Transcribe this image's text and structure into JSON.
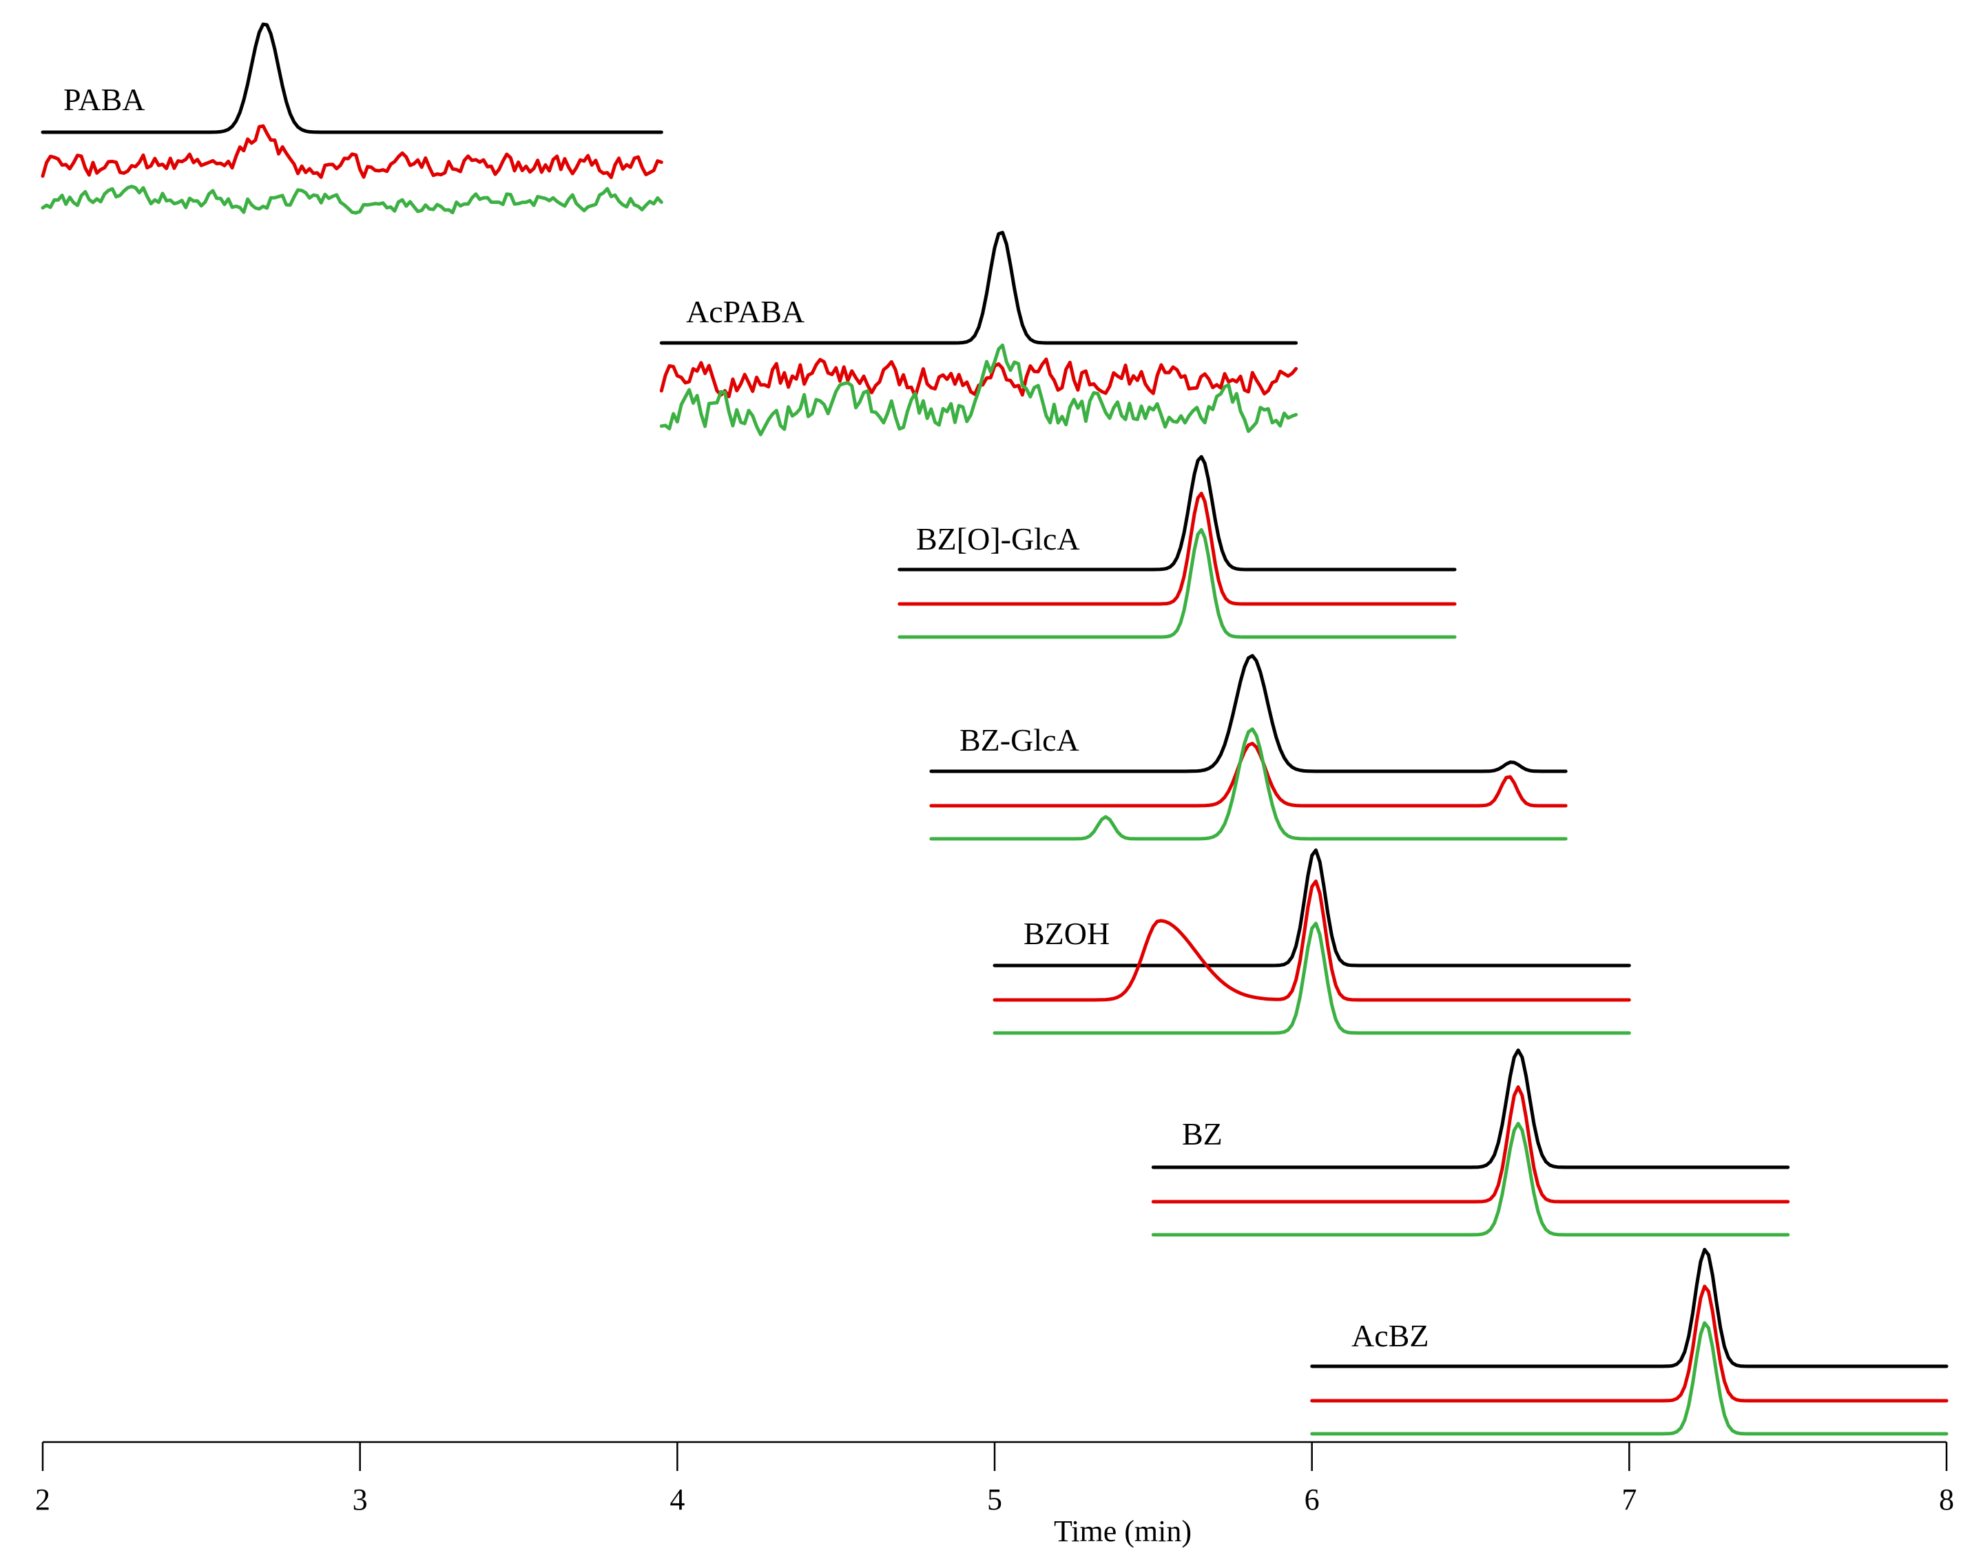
{
  "chart_data": {
    "type": "line",
    "title": "",
    "xlabel": "Time (min)",
    "ylabel": "",
    "xlim": [
      2,
      8
    ],
    "xticks": [
      2,
      3,
      4,
      5,
      6,
      7,
      8
    ],
    "xtick_labels": [
      "2",
      "3",
      "4",
      "5",
      "6",
      "7",
      "8"
    ],
    "series_colors": {
      "black": "#000000",
      "red": "#e00000",
      "green": "#3cb043"
    },
    "panels": [
      {
        "label": "PABA",
        "x_range": [
          2.0,
          3.95
        ],
        "peak_time": 2.7,
        "traces": [
          {
            "color": "black",
            "peak": 1.0,
            "width": 0.06,
            "noise": 0.0
          },
          {
            "color": "red",
            "peak": 0.35,
            "width": 0.06,
            "noise": 0.18
          },
          {
            "color": "green",
            "peak": 0.0,
            "width": 0.06,
            "noise": 0.16
          }
        ]
      },
      {
        "label": "AcPABA",
        "x_range": [
          3.95,
          5.95
        ],
        "peak_time": 5.02,
        "traces": [
          {
            "color": "black",
            "peak": 1.0,
            "width": 0.05,
            "noise": 0.0
          },
          {
            "color": "red",
            "peak": 0.0,
            "width": 0.05,
            "noise": 0.25
          },
          {
            "color": "green",
            "peak": 0.55,
            "width": 0.06,
            "noise": 0.3
          }
        ]
      },
      {
        "label": "BZ[O]-GlcA",
        "x_range": [
          4.7,
          6.45
        ],
        "peak_time": 5.65,
        "traces": [
          {
            "color": "black",
            "peak": 1.0,
            "width": 0.05,
            "noise": 0.0
          },
          {
            "color": "red",
            "peak": 1.0,
            "width": 0.045,
            "noise": 0.0
          },
          {
            "color": "green",
            "peak": 1.0,
            "width": 0.045,
            "noise": 0.0
          }
        ]
      },
      {
        "label": "BZ-GlcA",
        "x_range": [
          4.8,
          6.8
        ],
        "peak_time": 5.81,
        "traces": [
          {
            "color": "black",
            "peak": 1.0,
            "width": 0.07,
            "noise": 0.0,
            "minor_peak": {
              "t": 6.63,
              "h": 0.08
            }
          },
          {
            "color": "red",
            "peak": 0.55,
            "width": 0.06,
            "noise": 0.0,
            "minor_peak": {
              "t": 6.62,
              "h": 0.26
            }
          },
          {
            "color": "green",
            "peak": 1.0,
            "width": 0.06,
            "noise": 0.0,
            "minor_peak": {
              "t": 5.35,
              "h": 0.2
            }
          }
        ]
      },
      {
        "label": "BZOH",
        "x_range": [
          5.0,
          7.0
        ],
        "peak_time": 6.01,
        "traces": [
          {
            "color": "black",
            "peak": 1.0,
            "width": 0.045,
            "noise": 0.0
          },
          {
            "color": "red",
            "peak": 1.05,
            "width": 0.045,
            "noise": 0.0,
            "broad_peak": {
              "t": 5.52,
              "h": 0.7,
              "w": 0.09
            }
          },
          {
            "color": "green",
            "peak": 1.0,
            "width": 0.045,
            "noise": 0.0
          }
        ]
      },
      {
        "label": "BZ",
        "x_range": [
          5.5,
          7.5
        ],
        "peak_time": 6.65,
        "traces": [
          {
            "color": "black",
            "peak": 1.0,
            "width": 0.05,
            "noise": 0.0
          },
          {
            "color": "red",
            "peak": 1.0,
            "width": 0.045,
            "noise": 0.0
          },
          {
            "color": "green",
            "peak": 1.0,
            "width": 0.05,
            "noise": 0.0
          }
        ]
      },
      {
        "label": "AcBZ",
        "x_range": [
          6.0,
          8.0
        ],
        "peak_time": 7.24,
        "traces": [
          {
            "color": "black",
            "peak": 1.0,
            "width": 0.045,
            "noise": 0.0
          },
          {
            "color": "red",
            "peak": 1.0,
            "width": 0.045,
            "noise": 0.0
          },
          {
            "color": "green",
            "peak": 1.0,
            "width": 0.045,
            "noise": 0.0
          }
        ]
      }
    ]
  }
}
